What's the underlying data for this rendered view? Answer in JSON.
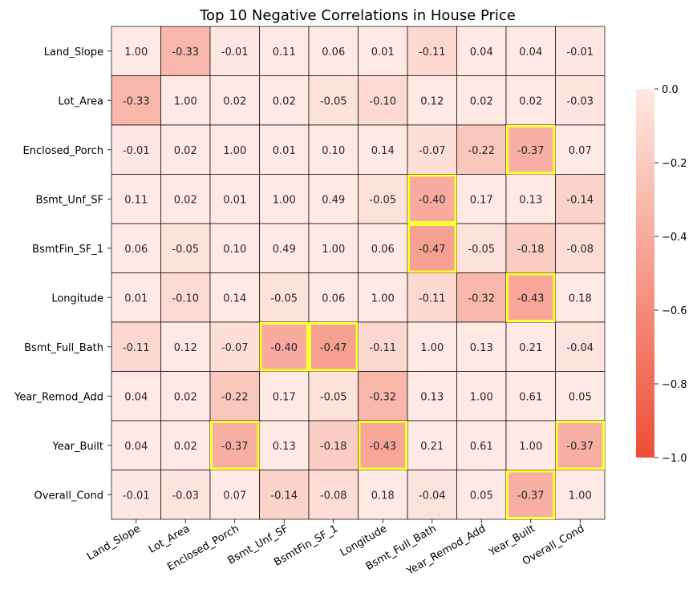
{
  "chart_data": {
    "type": "heatmap",
    "title": "Top 10 Negative Correlations in House Price",
    "labels": [
      "Land_Slope",
      "Lot_Area",
      "Enclosed_Porch",
      "Bsmt_Unf_SF",
      "BsmtFin_SF_1",
      "Longitude",
      "Bsmt_Full_Bath",
      "Year_Remod_Add",
      "Year_Built",
      "Overall_Cond"
    ],
    "matrix": [
      [
        1.0,
        -0.33,
        -0.01,
        0.11,
        0.06,
        0.01,
        -0.11,
        0.04,
        0.04,
        -0.01
      ],
      [
        -0.33,
        1.0,
        0.02,
        0.02,
        -0.05,
        -0.1,
        0.12,
        0.02,
        0.02,
        -0.03
      ],
      [
        -0.01,
        0.02,
        1.0,
        0.01,
        0.1,
        0.14,
        -0.07,
        -0.22,
        -0.37,
        0.07
      ],
      [
        0.11,
        0.02,
        0.01,
        1.0,
        0.49,
        -0.05,
        -0.4,
        0.17,
        0.13,
        -0.14
      ],
      [
        0.06,
        -0.05,
        0.1,
        0.49,
        1.0,
        0.06,
        -0.47,
        -0.05,
        -0.18,
        -0.08
      ],
      [
        0.01,
        -0.1,
        0.14,
        -0.05,
        0.06,
        1.0,
        -0.11,
        -0.32,
        -0.43,
        0.18
      ],
      [
        -0.11,
        0.12,
        -0.07,
        -0.4,
        -0.47,
        -0.11,
        1.0,
        0.13,
        0.21,
        -0.04
      ],
      [
        0.04,
        0.02,
        -0.22,
        0.17,
        -0.05,
        -0.32,
        0.13,
        1.0,
        0.61,
        0.05
      ],
      [
        0.04,
        0.02,
        -0.37,
        0.13,
        -0.18,
        -0.43,
        0.21,
        0.61,
        1.0,
        -0.37
      ],
      [
        -0.01,
        -0.03,
        0.07,
        -0.14,
        -0.08,
        0.18,
        -0.04,
        0.05,
        -0.37,
        1.0
      ]
    ],
    "highlighted": [
      [
        2,
        8
      ],
      [
        3,
        6
      ],
      [
        4,
        6
      ],
      [
        5,
        8
      ],
      [
        6,
        3
      ],
      [
        6,
        4
      ],
      [
        8,
        2
      ],
      [
        8,
        5
      ],
      [
        8,
        9
      ],
      [
        9,
        8
      ]
    ],
    "highlight_color": "#ffff33",
    "colorbar": {
      "range": [
        -1.0,
        0.0
      ],
      "ticks": [
        "0.0",
        "−0.2",
        "−0.4",
        "−0.6",
        "−0.8",
        "−1.0"
      ],
      "color_low": "#ee4d34",
      "color_high": "#fee9e4"
    },
    "cell_border_color": "#000000",
    "grid": true
  }
}
